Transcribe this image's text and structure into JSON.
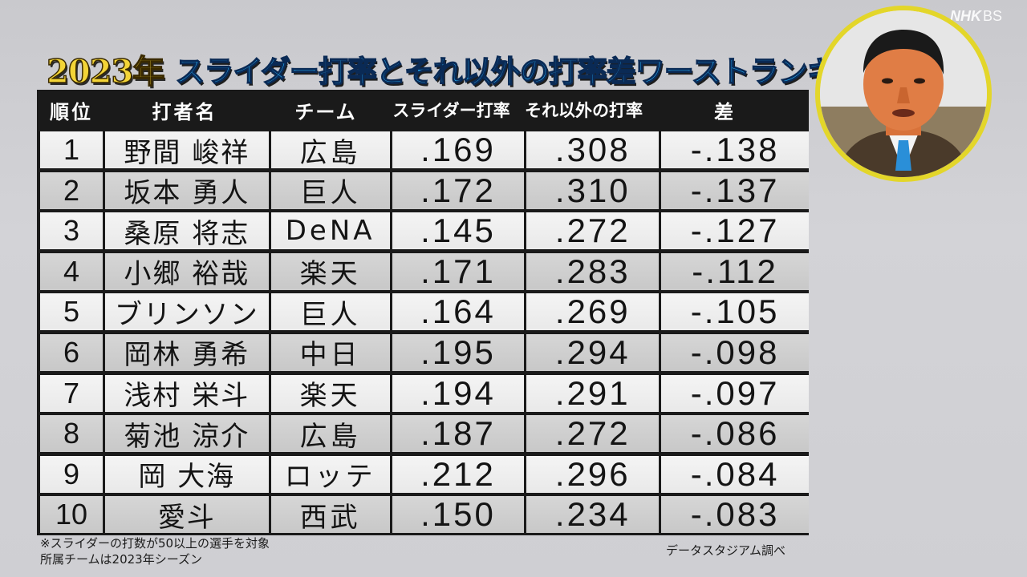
{
  "title": {
    "year": "2023年",
    "main": "スライダー打率とそれ以外の打率差ワーストランキング"
  },
  "table": {
    "headers": {
      "rank": "順位",
      "batter": "打者名",
      "team": "チーム",
      "slider_avg": "スライダー打率",
      "other_avg": "それ以外の打率",
      "diff": "差"
    },
    "rows": [
      {
        "rank": "1",
        "batter": "野間 峻祥",
        "team": "広島",
        "slider_avg": ".169",
        "other_avg": ".308",
        "diff": "-.138"
      },
      {
        "rank": "2",
        "batter": "坂本 勇人",
        "team": "巨人",
        "slider_avg": ".172",
        "other_avg": ".310",
        "diff": "-.137"
      },
      {
        "rank": "3",
        "batter": "桑原 将志",
        "team": "DeNA",
        "slider_avg": ".145",
        "other_avg": ".272",
        "diff": "-.127"
      },
      {
        "rank": "4",
        "batter": "小郷 裕哉",
        "team": "楽天",
        "slider_avg": ".171",
        "other_avg": ".283",
        "diff": "-.112"
      },
      {
        "rank": "5",
        "batter": "ブリンソン",
        "team": "巨人",
        "slider_avg": ".164",
        "other_avg": ".269",
        "diff": "-.105"
      },
      {
        "rank": "6",
        "batter": "岡林 勇希",
        "team": "中日",
        "slider_avg": ".195",
        "other_avg": ".294",
        "diff": "-.098"
      },
      {
        "rank": "7",
        "batter": "浅村 栄斗",
        "team": "楽天",
        "slider_avg": ".194",
        "other_avg": ".291",
        "diff": "-.097"
      },
      {
        "rank": "8",
        "batter": "菊池 涼介",
        "team": "広島",
        "slider_avg": ".187",
        "other_avg": ".272",
        "diff": "-.086"
      },
      {
        "rank": "9",
        "batter": "岡 大海",
        "team": "ロッテ",
        "slider_avg": ".212",
        "other_avg": ".296",
        "diff": "-.084"
      },
      {
        "rank": "10",
        "batter": "愛斗",
        "team": "西武",
        "slider_avg": ".150",
        "other_avg": ".234",
        "diff": "-.083"
      }
    ]
  },
  "notes": {
    "line1": "※スライダーの打数が50以上の選手を対象",
    "line2": "所属チームは2023年シーズン"
  },
  "source": "データスタジアム調べ",
  "logo": {
    "nhk": "NHK",
    "bs": "BS"
  },
  "colors": {
    "title_year": "#f3d437",
    "title_main": "#27b6ff",
    "wipe_ring": "#e3d62a",
    "table_frame": "#1a1a1a"
  }
}
